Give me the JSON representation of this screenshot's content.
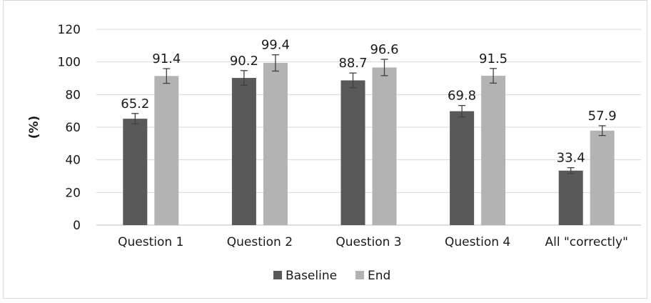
{
  "chart_data": {
    "type": "bar",
    "title": "",
    "xlabel": "",
    "ylabel": "(%)",
    "ylim": [
      0,
      120
    ],
    "yticks": [
      0,
      20,
      40,
      60,
      80,
      100,
      120
    ],
    "grid": "horizontal",
    "legend_position": "bottom",
    "categories": [
      "Question 1",
      "Question 2",
      "Question 3",
      "Question 4",
      "All \"correctly\""
    ],
    "series": [
      {
        "name": "Baseline",
        "color": "#595959",
        "values": [
          65.2,
          90.2,
          88.7,
          69.8,
          33.4
        ],
        "error": [
          3.2,
          4.5,
          4.5,
          3.5,
          1.8
        ]
      },
      {
        "name": "End",
        "color": "#b3b3b3",
        "values": [
          91.4,
          99.4,
          96.6,
          91.5,
          57.9
        ],
        "error": [
          4.5,
          5.0,
          5.0,
          4.5,
          3.0
        ]
      }
    ],
    "data_labels": [
      [
        "65.2",
        "90.2",
        "88.7",
        "69.8",
        "33.4"
      ],
      [
        "91.4",
        "99.4",
        "96.6",
        "91.5",
        "57.9"
      ]
    ]
  }
}
